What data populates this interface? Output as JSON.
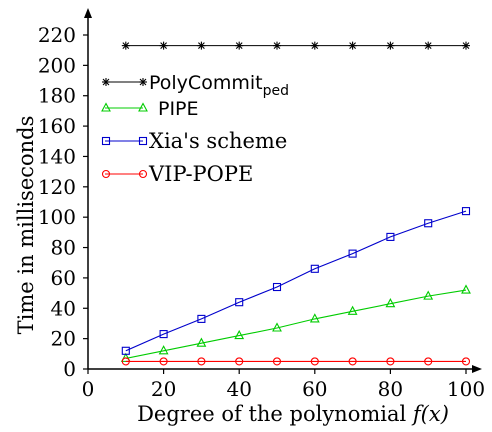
{
  "chart_data": {
    "type": "line",
    "xlabel_text": "Degree of the polynomial ",
    "xlabel_var": "f(x)",
    "ylabel": "Time in milliseconds",
    "xlim": [
      0,
      105
    ],
    "ylim": [
      0,
      225
    ],
    "x_ticks": [
      "0",
      "20",
      "40",
      "60",
      "80",
      "100"
    ],
    "y_ticks": [
      "0",
      "20",
      "40",
      "60",
      "80",
      "100",
      "120",
      "140",
      "160",
      "180",
      "200",
      "220"
    ],
    "x": [
      10,
      20,
      30,
      40,
      50,
      60,
      70,
      80,
      90,
      100
    ],
    "series": [
      {
        "name_main": "PolyCommit",
        "name_sub": "ped",
        "marker": "star",
        "color": "#000000",
        "values": [
          213,
          213,
          213,
          213,
          213,
          213,
          213,
          213,
          213,
          213
        ]
      },
      {
        "name_main": "PIPE",
        "name_sub": "",
        "marker": "triangle",
        "color": "#00cc00",
        "values": [
          7,
          12,
          17,
          22,
          27,
          33,
          38,
          43,
          48,
          52
        ]
      },
      {
        "name_main": "Xia's scheme",
        "name_sub": "",
        "marker": "square",
        "color": "#0000cc",
        "values": [
          12,
          23,
          33,
          44,
          54,
          66,
          76,
          87,
          96,
          104
        ]
      },
      {
        "name_main": "VIP-POPE",
        "name_sub": "",
        "marker": "circle",
        "color": "#ff0000",
        "values": [
          5,
          5,
          5,
          5,
          5,
          5,
          5,
          5,
          5,
          5
        ]
      }
    ],
    "legend": "upper-left",
    "grid": false
  }
}
